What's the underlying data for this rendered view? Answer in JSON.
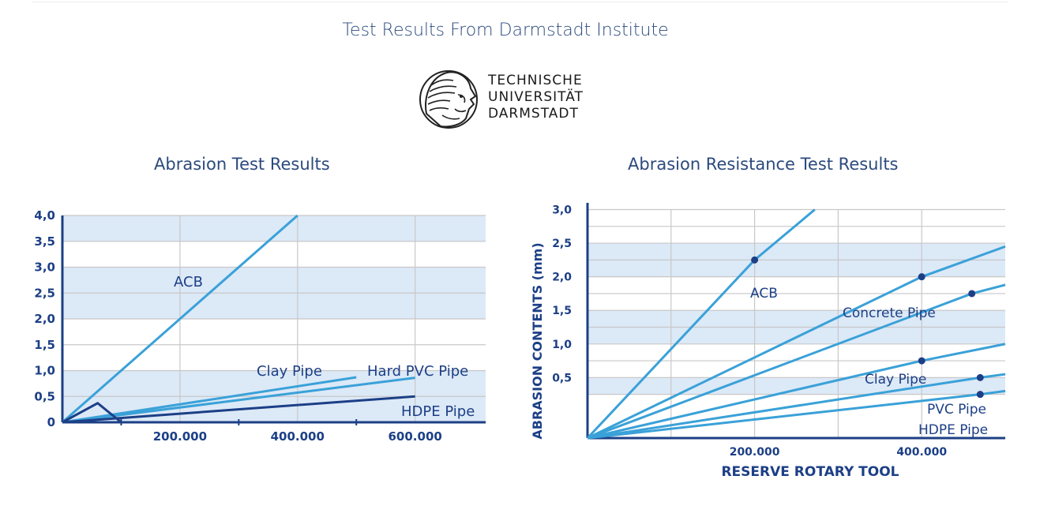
{
  "header": {
    "title": "Test Results From Darmstadt Institute",
    "logo_lines": [
      "TECHNISCHE",
      "UNIVERSITÄT",
      "DARMSTADT"
    ]
  },
  "colors": {
    "title": "#2b4a7d",
    "axis": "#1c3f86",
    "band": "#dce9f7",
    "line_light": "#3aa1d8",
    "line_dark": "#1c3f86",
    "grid": "#c8c8c8"
  },
  "chart_data": [
    {
      "type": "line",
      "title": "Abrasion Test Results",
      "xlabel": "",
      "ylabel": "",
      "xlim": [
        0,
        720000
      ],
      "ylim": [
        0,
        4.0
      ],
      "y_ticks": [
        "0",
        "0,5",
        "1,0",
        "1,5",
        "2,0",
        "2,5",
        "3,0",
        "3,5",
        "4,0"
      ],
      "x_ticks": [
        "200.000",
        "400.000",
        "600.000"
      ],
      "series": [
        {
          "name": "ACB",
          "color": "#3aa1d8",
          "points": [
            [
              0,
              0
            ],
            [
              400000,
              4.0
            ]
          ]
        },
        {
          "name": "Clay Pipe",
          "color": "#3aa1d8",
          "points": [
            [
              0,
              0
            ],
            [
              500000,
              0.87
            ]
          ]
        },
        {
          "name": "Hard PVC Pipe",
          "color": "#3aa1d8",
          "points": [
            [
              0,
              0
            ],
            [
              600000,
              0.86
            ]
          ]
        },
        {
          "name": "HDPE Pipe",
          "color": "#1c3f86",
          "points": [
            [
              0,
              0
            ],
            [
              600000,
              0.5
            ]
          ]
        },
        {
          "name": "",
          "color": "#1c3f86",
          "points": [
            [
              0,
              0
            ],
            [
              60000,
              0.37
            ],
            [
              100000,
              0
            ]
          ]
        }
      ],
      "grid": true
    },
    {
      "type": "line",
      "title": "Abrasion Resistance Test Results",
      "xlabel": "RESERVE ROTARY TOOL",
      "ylabel": "ABRASION CONTENTS (mm)",
      "xlim": [
        0,
        500000
      ],
      "ylim": [
        -0.4,
        3.1
      ],
      "y_ticks": [
        "0,5",
        "1,0",
        "1,5",
        "2,0",
        "2,5",
        "3,0"
      ],
      "x_ticks": [
        "200.000",
        "400.000"
      ],
      "series": [
        {
          "name": "ACB",
          "color": "#3aa1d8",
          "points": [
            [
              0,
              -0.4
            ],
            [
              200000,
              2.25
            ],
            [
              272000,
              3.0
            ]
          ]
        },
        {
          "name": "Concrete Pipe",
          "color": "#3aa1d8",
          "points": [
            [
              0,
              -0.4
            ],
            [
              400000,
              2.0
            ],
            [
              500000,
              2.45
            ]
          ]
        },
        {
          "name": "",
          "color": "#3aa1d8",
          "points": [
            [
              0,
              -0.4
            ],
            [
              460000,
              1.75
            ],
            [
              500000,
              1.88
            ]
          ]
        },
        {
          "name": "Clay Pipe",
          "color": "#3aa1d8",
          "points": [
            [
              0,
              -0.4
            ],
            [
              400000,
              0.75
            ],
            [
              500000,
              1.0
            ]
          ]
        },
        {
          "name": "PVC Pipe",
          "color": "#3aa1d8",
          "points": [
            [
              0,
              -0.4
            ],
            [
              470000,
              0.5
            ],
            [
              500000,
              0.55
            ]
          ]
        },
        {
          "name": "HDPE Pipe",
          "color": "#3aa1d8",
          "points": [
            [
              0,
              -0.4
            ],
            [
              470000,
              0.25
            ],
            [
              500000,
              0.3
            ]
          ]
        }
      ],
      "markers": [
        [
          200000,
          2.25
        ],
        [
          400000,
          2.0
        ],
        [
          460000,
          1.75
        ],
        [
          400000,
          0.75
        ],
        [
          470000,
          0.5
        ],
        [
          470000,
          0.25
        ]
      ],
      "grid": true
    }
  ]
}
